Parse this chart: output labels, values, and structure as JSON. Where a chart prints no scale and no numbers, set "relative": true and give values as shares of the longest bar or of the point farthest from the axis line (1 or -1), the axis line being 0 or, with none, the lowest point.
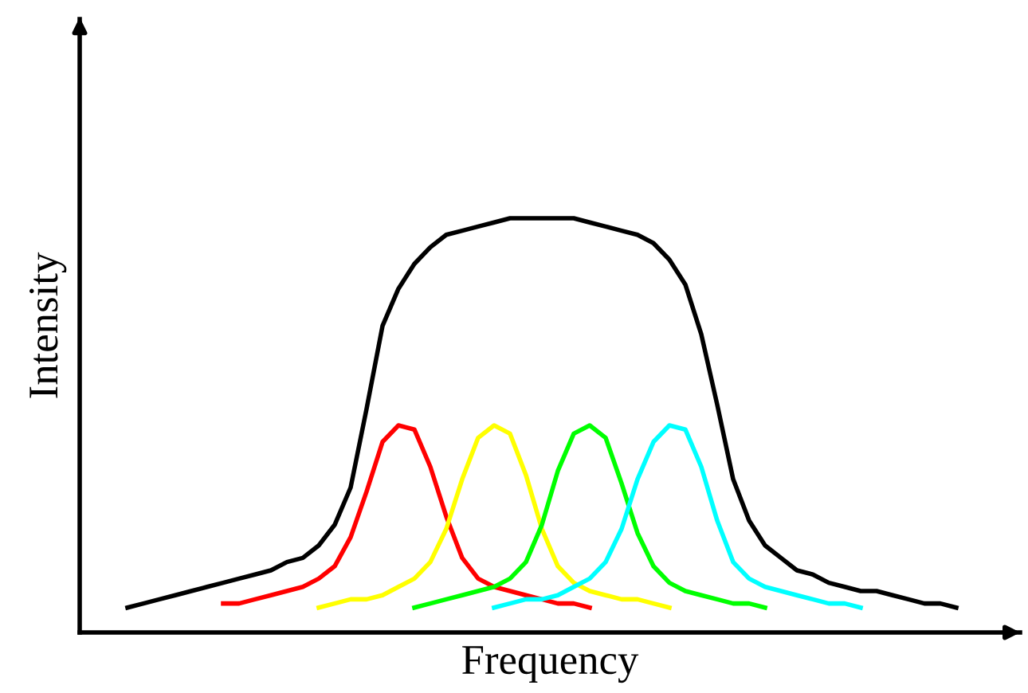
{
  "chart_data": {
    "type": "line",
    "relative": true,
    "xlabel": "Frequency",
    "ylabel": "Intensity",
    "legend": false,
    "grid": false,
    "marker": "none",
    "line_style": "solid",
    "categories": [
      null,
      null,
      null,
      null,
      null,
      null,
      null,
      null,
      null,
      null,
      null,
      null,
      null,
      null,
      null,
      null,
      null,
      null,
      null,
      null,
      null,
      null,
      null,
      null,
      null,
      null,
      null,
      null,
      null,
      null,
      null,
      null,
      null,
      null,
      null,
      null,
      null,
      null,
      null,
      null,
      null,
      null,
      null,
      null,
      null,
      null,
      null,
      null,
      null,
      null,
      null,
      null,
      null
    ],
    "series": [
      {
        "color": "#000000",
        "values": [
          0.06,
          0.07,
          0.08,
          0.09,
          0.1,
          0.11,
          0.12,
          0.13,
          0.14,
          0.15,
          0.17,
          0.18,
          0.21,
          0.26,
          0.35,
          0.54,
          0.74,
          0.83,
          0.89,
          0.93,
          0.96,
          0.97,
          0.98,
          0.99,
          1.0,
          1.0,
          1.0,
          1.0,
          1.0,
          0.99,
          0.98,
          0.97,
          0.96,
          0.94,
          0.9,
          0.84,
          0.72,
          0.55,
          0.37,
          0.27,
          0.21,
          0.18,
          0.15,
          0.14,
          0.12,
          0.11,
          0.1,
          0.1,
          0.09,
          0.08,
          0.07,
          0.07,
          0.06
        ]
      },
      {
        "color": "#ff0000",
        "values": [
          null,
          null,
          null,
          null,
          null,
          null,
          0.07,
          0.07,
          0.08,
          0.09,
          0.1,
          0.11,
          0.13,
          0.16,
          0.23,
          0.34,
          0.46,
          0.5,
          0.49,
          0.4,
          0.28,
          0.18,
          0.13,
          0.11,
          0.1,
          0.09,
          0.08,
          0.07,
          0.07,
          0.06,
          null,
          null,
          null,
          null,
          null,
          null,
          null,
          null,
          null,
          null,
          null,
          null,
          null,
          null,
          null,
          null,
          null,
          null,
          null,
          null,
          null,
          null,
          null
        ]
      },
      {
        "color": "#ffff00",
        "values": [
          null,
          null,
          null,
          null,
          null,
          null,
          null,
          null,
          null,
          null,
          null,
          null,
          0.06,
          0.07,
          0.08,
          0.08,
          0.09,
          0.11,
          0.13,
          0.17,
          0.25,
          0.37,
          0.47,
          0.5,
          0.48,
          0.38,
          0.25,
          0.16,
          0.12,
          0.1,
          0.09,
          0.08,
          0.08,
          0.07,
          0.06,
          null,
          null,
          null,
          null,
          null,
          null,
          null,
          null,
          null,
          null,
          null,
          null,
          null,
          null,
          null,
          null,
          null,
          null
        ]
      },
      {
        "color": "#00ff00",
        "values": [
          null,
          null,
          null,
          null,
          null,
          null,
          null,
          null,
          null,
          null,
          null,
          null,
          null,
          null,
          null,
          null,
          null,
          null,
          0.06,
          0.07,
          0.08,
          0.09,
          0.1,
          0.11,
          0.13,
          0.17,
          0.26,
          0.39,
          0.48,
          0.5,
          0.47,
          0.36,
          0.24,
          0.16,
          0.12,
          0.1,
          0.09,
          0.08,
          0.07,
          0.07,
          0.06,
          null,
          null,
          null,
          null,
          null,
          null,
          null,
          null,
          null,
          null,
          null,
          null
        ]
      },
      {
        "color": "#00ffff",
        "values": [
          null,
          null,
          null,
          null,
          null,
          null,
          null,
          null,
          null,
          null,
          null,
          null,
          null,
          null,
          null,
          null,
          null,
          null,
          null,
          null,
          null,
          null,
          null,
          0.06,
          0.07,
          0.08,
          0.08,
          0.09,
          0.11,
          0.13,
          0.17,
          0.25,
          0.37,
          0.46,
          0.5,
          0.49,
          0.4,
          0.27,
          0.17,
          0.13,
          0.11,
          0.1,
          0.09,
          0.08,
          0.07,
          0.07,
          0.06,
          null,
          null,
          null,
          null,
          null,
          null
        ]
      }
    ]
  }
}
